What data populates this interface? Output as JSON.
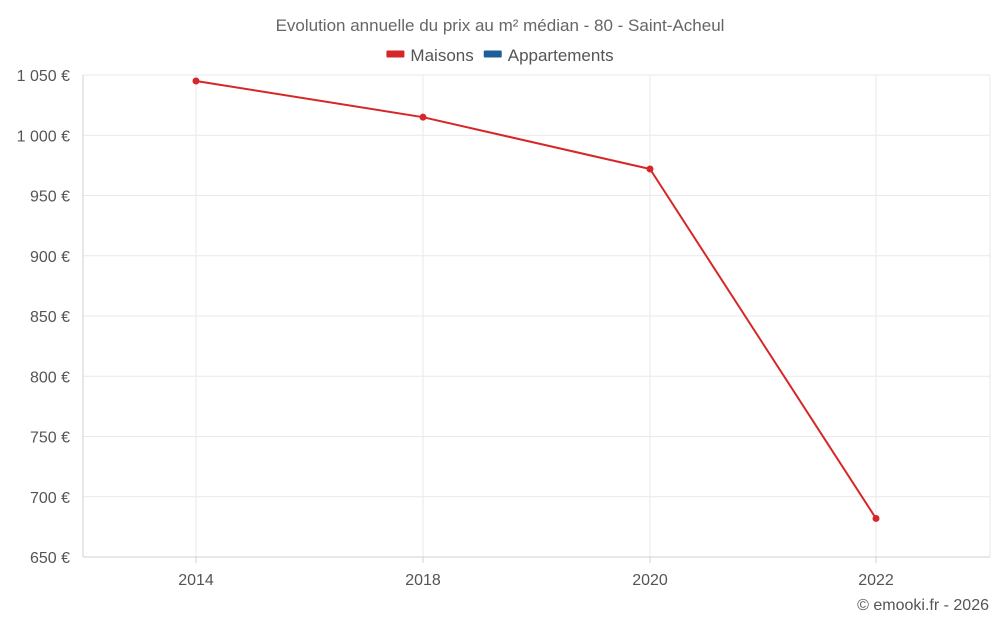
{
  "chart_data": {
    "type": "line",
    "title": "Evolution annuelle du prix au m² médian - 80 - Saint-Acheul",
    "categories": [
      "2014",
      "2018",
      "2020",
      "2022"
    ],
    "series": [
      {
        "name": "Maisons",
        "color": "#d62728",
        "values": [
          1045,
          1015,
          972,
          682
        ]
      },
      {
        "name": "Appartements",
        "color": "#1f5f99",
        "values": [
          null,
          null,
          null,
          null
        ]
      }
    ],
    "xlabel": "",
    "ylabel": "",
    "ylim": [
      650,
      1050
    ],
    "yticks": [
      650,
      700,
      750,
      800,
      850,
      900,
      950,
      1000,
      1050
    ],
    "ytick_labels": [
      "650 €",
      "700 €",
      "750 €",
      "800 €",
      "850 €",
      "900 €",
      "950 €",
      "1 000 €",
      "1 050 €"
    ],
    "grid": true,
    "legend_position": "top-center"
  },
  "credit": "© emooki.fr - 2026"
}
